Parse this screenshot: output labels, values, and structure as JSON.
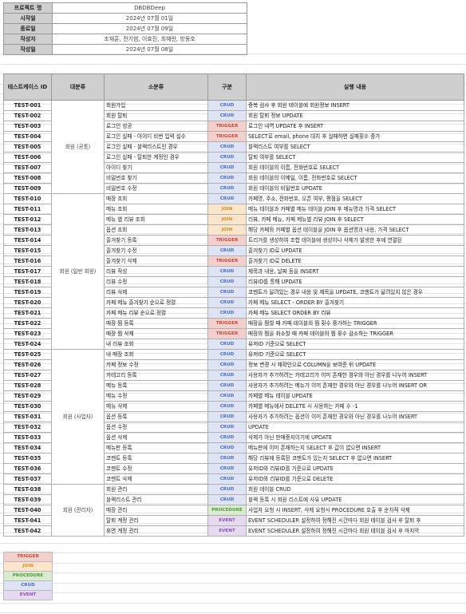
{
  "info": [
    {
      "key": "프로젝트 명",
      "value": "DBDBDeep"
    },
    {
      "key": "시작일",
      "value": "2024년 07월 01일"
    },
    {
      "key": "종료일",
      "value": "2024년 07월 09일"
    },
    {
      "key": "작성자",
      "value": "조재훈, 전기범, 이효진, 최혜란, 방동호"
    },
    {
      "key": "작성일",
      "value": "2024년 07월 08일"
    }
  ],
  "headers": [
    "테스트케이스 ID",
    "대분류",
    "소분류",
    "구분",
    "실행 내용"
  ],
  "groups": [
    {
      "major": "회원 (공통)",
      "rows": [
        [
          "TEST-001",
          "회원가입",
          "CRUD",
          "중복 검사 후 회원 테이블에 회원정보 INSERT"
        ],
        [
          "TEST-002",
          "회원 탈퇴",
          "CRUD",
          "회원 탈퇴 정보 UPDATE"
        ],
        [
          "TEST-003",
          "로그인 성공",
          "TRIGGER",
          "로그인 내역 UPDATE 후 INSERT"
        ],
        [
          "TEST-004",
          "로그인 실패 - 아이디 비번 입력 실수",
          "TRIGGER",
          "SELECT로 email, phone 대치 후 실패하면 실패횟수 증가"
        ],
        [
          "TEST-005",
          "로그인 실패 - 블랙리스트인 경우",
          "CRUD",
          "블랙리스트 여부를 SELECT"
        ],
        [
          "TEST-006",
          "로그인 실패 - 탈퇴한 계정인 경우",
          "CRUD",
          "탈퇴 여부를 SELECT"
        ],
        [
          "TEST-007",
          "아이디 찾기",
          "CRUD",
          "회원 테이블의 이름, 전화번호로 SELECT"
        ],
        [
          "TEST-008",
          "비밀번호 찾기",
          "CRUD",
          "회원 테이블의 이메일, 이름, 전화번호로 SELECT"
        ],
        [
          "TEST-009",
          "비밀번호 수정",
          "CRUD",
          "회원 테이블의 비밀번호 UPDATE"
        ]
      ]
    },
    {
      "major": "회원 (일반 회원)",
      "rows": [
        [
          "TEST-010",
          "매장 조회",
          "CRUD",
          "카페명, 주소, 전화번호, 오픈 여부, 평점을 SELECT"
        ],
        [
          "TEST-011",
          "메뉴 조회",
          "JOIN",
          "메뉴 테이블과 카페별 메뉴 테이블 JOIN 후 메뉴명과 가격 SELECT"
        ],
        [
          "TEST-012",
          "메뉴 별 리뷰 조회",
          "JOIN",
          "리뷰, 카페 메뉴, 카페 메뉴별 리뷰 JOIN 후 SELECT"
        ],
        [
          "TEST-013",
          "옵션 조회",
          "JOIN",
          "해당 카페와 카페별 옵션 테이블을 JOIN 후 옵션명과 내용, 가격 SELECT"
        ],
        [
          "TEST-014",
          "즐겨찾기 등록",
          "TRIGGER",
          "트리거를 생성하여 조합 테이블에 생성이나 삭제가 발생한 후에 연결된"
        ],
        [
          "TEST-015",
          "즐겨찾기 수정",
          "CRUD",
          "즐겨찾기 ID로 UPDATE"
        ],
        [
          "TEST-016",
          "즐겨찾기 삭제",
          "TRIGGER",
          "즐겨찾기 ID로 DELETE"
        ],
        [
          "TEST-017",
          "리뷰 작성",
          "CRUD",
          "제목과 내용, 날짜 등을 INSERT"
        ],
        [
          "TEST-018",
          "리뷰 수정",
          "CRUD",
          "리뷰ID를 통해 UPDATE"
        ],
        [
          "TEST-019",
          "리뷰 삭제",
          "CRUD",
          "코멘트가 달려있는 경우 내용 및 제목을 UPDATE, 코멘트가 달려있지 않은 경우"
        ],
        [
          "TEST-020",
          "카페 메뉴 즐겨찾기 순으로 정렬",
          "CRUD",
          "카페 메뉴 SELECT - ORDER BY 즐겨찾기"
        ],
        [
          "TEST-021",
          "카페 메뉴 리뷰 순으로 정렬",
          "CRUD",
          "카페 메뉴 SELECT    ORDER BY 리뷰"
        ],
        [
          "TEST-022",
          "매장 찜 등록",
          "TRIGGER",
          "매장을 찜할 때 카페 테이블의 찜 횟수 증가하는 TRIGGER"
        ],
        [
          "TEST-023",
          "매장 찜 삭제",
          "TRIGGER",
          "매장의 찜을 취소할 때 카페 테이블의 찜 횟수 감소하는 TRIGGER"
        ],
        [
          "TEST-024",
          "내 리뷰 조회",
          "CRUD",
          "유저ID 기준으로 SELECT"
        ]
      ]
    },
    {
      "major": "회원 (사업자)",
      "rows": [
        [
          "TEST-025",
          "내 매장 조회",
          "CRUD",
          "유저ID 기준으로 SELECT"
        ],
        [
          "TEST-026",
          "카페 정보 수정",
          "CRUD",
          "정보 변경 시 재확인으로 COLUMN을 보여준 뒤 UPDATE"
        ],
        [
          "TEST-027",
          "카테고리 등록",
          "CRUD",
          "사용자가 추가하려는 카테고리가 이미 존재한 경우와 아닌 경우를 나누어 INSERT"
        ],
        [
          "TEST-028",
          "메뉴 등록",
          "CRUD",
          "사용자가 추가하려는 메뉴가 이미 존재한 경우와 아닌 경우를 나누어 INSERT OR"
        ],
        [
          "TEST-029",
          "메뉴 수정",
          "CRUD",
          "카페별 메뉴 테이블 UPDATE"
        ],
        [
          "TEST-030",
          "메뉴 삭제",
          "CRUD",
          "카페별 메뉴에서 DELETE 시 사용하는 카페 수 -1"
        ],
        [
          "TEST-031",
          "옵션 등록",
          "CRUD",
          "사용자가 추가하려는 옵션이 이미 존재한 경우와 아닌 경우를 나누어 INSERT"
        ],
        [
          "TEST-032",
          "옵션 수정",
          "CRUD",
          "UPDATE"
        ],
        [
          "TEST-033",
          "옵션 삭제",
          "CRUD",
          "삭제가 아닌 판매중지이기에 UPDATE"
        ],
        [
          "TEST-034",
          "메뉴판 등록",
          "CRUD",
          "메뉴판에 이미 존재하는지 SELECT 후 값이 없으면 INSERT"
        ],
        [
          "TEST-035",
          "코멘트 등록",
          "CRUD",
          "해당 리뷰에 등록된 코멘트가 있는지 SELECT 후 없으면 INSERT"
        ],
        [
          "TEST-036",
          "코멘트 수정",
          "CRUD",
          "유저ID와 리뷰ID를 기준으로 UPDATE"
        ],
        [
          "TEST-037",
          "코멘트 삭제",
          "CRUD",
          "유저ID와 리뷰ID를 기준으로 DELETE"
        ]
      ]
    },
    {
      "major": "회원 (관리자)",
      "rows": [
        [
          "TEST-038",
          "회원 관리",
          "CRUD",
          "회원 테이블 CRUD"
        ],
        [
          "TEST-039",
          "블랙리스트 관리",
          "CRUD",
          "블랙 등록 시 회원 리스트에 사유 UPDATE"
        ],
        [
          "TEST-040",
          "매장 관리",
          "PROCEDURE",
          "사업자 요청 시 INSERT, 삭제 요청시 PROCEDURE 호출 후 순차적 삭제"
        ],
        [
          "TEST-041",
          "탈퇴 계정 관리",
          "EVENT",
          "EVENT SCHEDULER 설정하여 정해진 시간마다 회원 테이블 검사 후 탈퇴 후"
        ],
        [
          "TEST-042",
          "휴면 계정 관리",
          "EVENT",
          "EVENT SCHEDULER 설정하여 정해진 시간마다 회원 테이블 검사 후 마지막"
        ]
      ]
    }
  ],
  "legend": [
    "TRIGGER",
    "JOIN",
    "PROCEDURE",
    "CRUD",
    "EVENT"
  ]
}
